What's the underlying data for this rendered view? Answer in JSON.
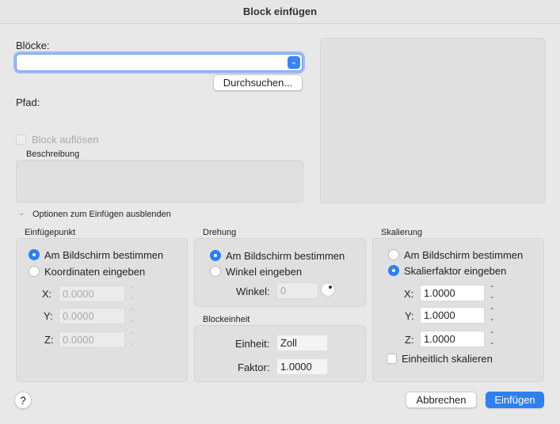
{
  "title": "Block einfügen",
  "blocks_label": "Blöcke:",
  "blocks_value": "",
  "browse_label": "Durchsuchen...",
  "path_label": "Pfad:",
  "explode_label": "Block auflösen",
  "explode_checked": false,
  "description_label": "Beschreibung",
  "options_toggle_label": "Optionen zum Einfügen ausblenden",
  "insertion": {
    "title": "Einfügepunkt",
    "opt_screen": "Am Bildschirm bestimmen",
    "opt_coords": "Koordinaten eingeben",
    "selected": "screen",
    "x_label": "X:",
    "x": "0.0000",
    "y_label": "Y:",
    "y": "0.0000",
    "z_label": "Z:",
    "z": "0.0000"
  },
  "rotation": {
    "title": "Drehung",
    "opt_screen": "Am Bildschirm bestimmen",
    "opt_angle": "Winkel eingeben",
    "selected": "screen",
    "angle_label": "Winkel:",
    "angle": "0"
  },
  "unit": {
    "title": "Blockeinheit",
    "unit_label": "Einheit:",
    "unit": "Zoll",
    "factor_label": "Faktor:",
    "factor": "1.0000"
  },
  "scale": {
    "title": "Skalierung",
    "opt_screen": "Am Bildschirm bestimmen",
    "opt_factor": "Skalierfaktor eingeben",
    "selected": "factor",
    "x_label": "X:",
    "x": "1.0000",
    "y_label": "Y:",
    "y": "1.0000",
    "z_label": "Z:",
    "z": "1.0000",
    "uniform_label": "Einheitlich skalieren",
    "uniform_checked": false
  },
  "help_label": "?",
  "cancel_label": "Abbrechen",
  "insert_label": "Einfügen",
  "accent": "#2f7ef3"
}
